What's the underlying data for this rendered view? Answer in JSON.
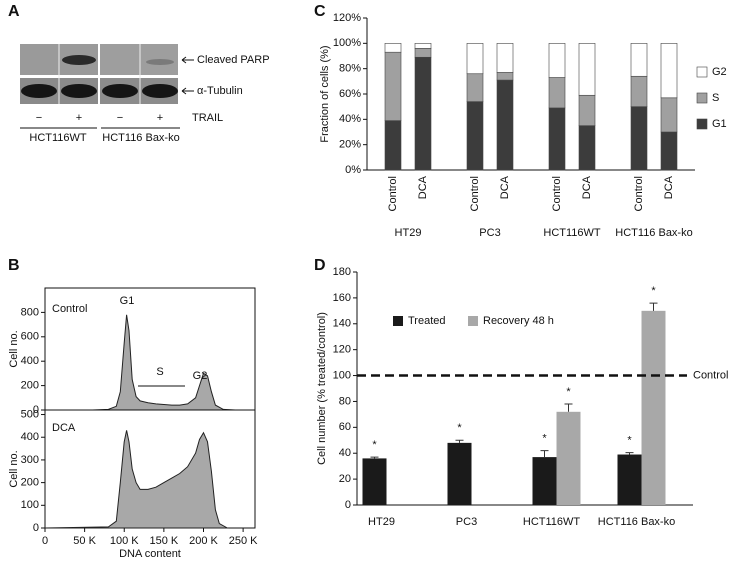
{
  "panel_labels": [
    "A",
    "B",
    "C",
    "D"
  ],
  "blot": {
    "bands": [
      "Cleaved PARP",
      "α-Tubulin"
    ],
    "treatment": "TRAIL",
    "lanes": [
      "−",
      "+",
      "−",
      "+"
    ],
    "cell_lines": [
      "HCT116WT",
      "HCT116 Bax-ko"
    ]
  },
  "chart_data": [
    {
      "type": "area",
      "annotations": [
        "Control",
        "G1",
        "S",
        "G2"
      ],
      "ylabel": "Cell no.",
      "color": "#a8a8a8",
      "x": [
        0,
        60000,
        80000,
        90000,
        95000,
        100000,
        103000,
        106000,
        110000,
        115000,
        120000,
        130000,
        140000,
        150000,
        160000,
        170000,
        180000,
        190000,
        195000,
        200000,
        205000,
        210000,
        215000,
        225000,
        240000
      ],
      "values": [
        0,
        0,
        5,
        30,
        150,
        550,
        780,
        650,
        250,
        110,
        75,
        60,
        50,
        45,
        40,
        40,
        50,
        100,
        200,
        300,
        280,
        150,
        40,
        5,
        0
      ],
      "xlim": [
        0,
        265000
      ],
      "ylim": [
        0,
        1000
      ],
      "yticks": [
        0,
        200,
        400,
        600,
        800
      ]
    },
    {
      "type": "area",
      "annotations": [
        "DCA"
      ],
      "ylabel": "Cell no.",
      "xlabel": "DNA content",
      "color": "#a8a8a8",
      "x": [
        0,
        80000,
        90000,
        95000,
        100000,
        103000,
        106000,
        110000,
        115000,
        120000,
        130000,
        140000,
        150000,
        160000,
        170000,
        180000,
        190000,
        195000,
        200000,
        205000,
        210000,
        215000,
        220000,
        230000
      ],
      "values": [
        0,
        5,
        30,
        200,
        380,
        430,
        380,
        260,
        200,
        170,
        170,
        180,
        200,
        220,
        240,
        270,
        330,
        390,
        420,
        380,
        250,
        80,
        20,
        0
      ],
      "xlim": [
        0,
        265000
      ],
      "ylim": [
        0,
        520
      ],
      "yticks": [
        0,
        100,
        200,
        300,
        400,
        500
      ],
      "xticks": [
        0,
        {
          "value": 50000,
          "label": "50 K"
        },
        {
          "value": 100000,
          "label": "100 K"
        },
        {
          "value": 150000,
          "label": "150 K"
        },
        {
          "value": 200000,
          "label": "200 K"
        },
        {
          "value": 250000,
          "label": "250 K"
        }
      ]
    },
    {
      "type": "stacked-bar",
      "ylabel": "Fraction of cells (%)",
      "categories": [
        "Control",
        "DCA",
        "Control",
        "DCA",
        "Control",
        "DCA",
        "Control",
        "DCA"
      ],
      "groups": [
        "HT29",
        "PC3",
        "HCT116WT",
        "HCT116 Bax-ko"
      ],
      "series": [
        {
          "name": "G1",
          "color": "#3c3c3c",
          "values": [
            39,
            89,
            54,
            71,
            49,
            35,
            50,
            30
          ]
        },
        {
          "name": "S",
          "color": "#a0a0a0",
          "values": [
            54,
            7,
            22,
            6,
            24,
            24,
            24,
            27
          ]
        },
        {
          "name": "G2",
          "color": "#ffffff",
          "values": [
            7,
            4,
            24,
            23,
            27,
            41,
            26,
            43
          ]
        }
      ],
      "ylim": [
        0,
        120
      ],
      "yticks": [
        {
          "value": 0,
          "label": "0%"
        },
        {
          "value": 20,
          "label": "20%"
        },
        {
          "value": 40,
          "label": "40%"
        },
        {
          "value": 60,
          "label": "60%"
        },
        {
          "value": 80,
          "label": "80%"
        },
        {
          "value": 100,
          "label": "100%"
        },
        {
          "value": 120,
          "label": "120%"
        }
      ]
    },
    {
      "type": "grouped-bar",
      "ylabel": "Cell number (% treated/control)",
      "categories": [
        "HT29",
        "PC3",
        "HCT116WT",
        "HCT116 Bax-ko"
      ],
      "series": [
        {
          "name": "Treated",
          "color": "#1a1a1a",
          "values": [
            36,
            48,
            37,
            39
          ],
          "errors": [
            1,
            2,
            5,
            1.5
          ],
          "significance": [
            "*",
            "*",
            "*",
            "*"
          ]
        },
        {
          "name": "Recovery 48 h",
          "color": "#a8a8a8",
          "values": [
            null,
            null,
            72,
            150
          ],
          "errors": [
            null,
            null,
            6,
            6
          ],
          "significance": [
            null,
            null,
            "*",
            "*"
          ]
        }
      ],
      "reference_line": {
        "value": 100,
        "label": "Control"
      },
      "ylim": [
        0,
        180
      ],
      "yticks": [
        0,
        20,
        40,
        60,
        80,
        100,
        120,
        140,
        160,
        180
      ]
    }
  ]
}
